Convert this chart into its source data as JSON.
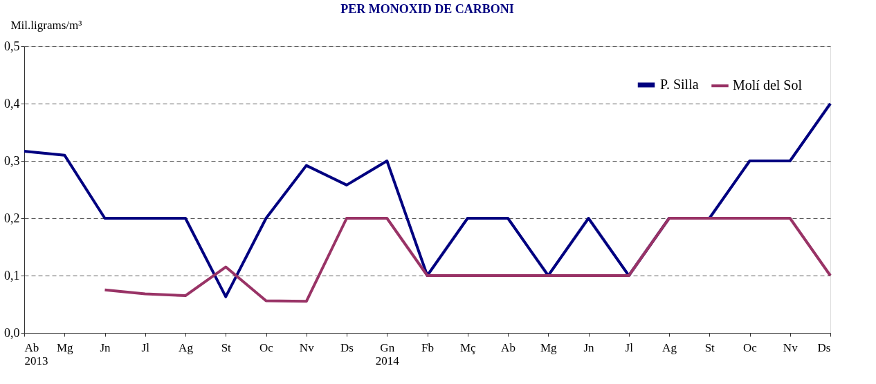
{
  "chart_data": {
    "type": "line",
    "title": "PER MONOXID DE CARBONI",
    "ylabel": "Mil.ligrams/m³",
    "categories": [
      "Ab\n2013",
      "Mg",
      "Jn",
      "Jl",
      "Ag",
      "St",
      "Oc",
      "Nv",
      "Ds",
      "Gn\n2014",
      "Fb",
      "Mç",
      "Ab",
      "Mg",
      "Jn",
      "Jl",
      "Ag",
      "St",
      "Oc",
      "Nv",
      "Ds"
    ],
    "series": [
      {
        "name": "P. Silla",
        "color": "#000080",
        "values": [
          0.317,
          0.31,
          0.2,
          0.2,
          0.2,
          0.063,
          0.2,
          0.292,
          0.258,
          0.3,
          0.1,
          0.2,
          0.2,
          0.1,
          0.2,
          0.1,
          0.2,
          0.2,
          0.3,
          0.3,
          0.4
        ]
      },
      {
        "name": "Molí del Sol",
        "color": "#993366",
        "values": [
          null,
          null,
          0.075,
          0.068,
          0.065,
          0.115,
          0.056,
          0.055,
          0.2,
          0.2,
          0.1,
          0.1,
          0.1,
          0.1,
          0.1,
          0.1,
          0.2,
          0.2,
          0.2,
          0.2,
          0.1
        ]
      }
    ],
    "ylim": [
      0,
      0.5
    ],
    "yticks": [
      {
        "value": 0,
        "label": "0,0"
      },
      {
        "value": 0.1,
        "label": "0,1"
      },
      {
        "value": 0.2,
        "label": "0,2"
      },
      {
        "value": 0.3,
        "label": "0,3"
      },
      {
        "value": 0.4,
        "label": "0,4"
      },
      {
        "value": 0.5,
        "label": "0,5"
      }
    ],
    "grid": "y",
    "legend": "top right",
    "marker": "none",
    "line_style": "solid"
  }
}
